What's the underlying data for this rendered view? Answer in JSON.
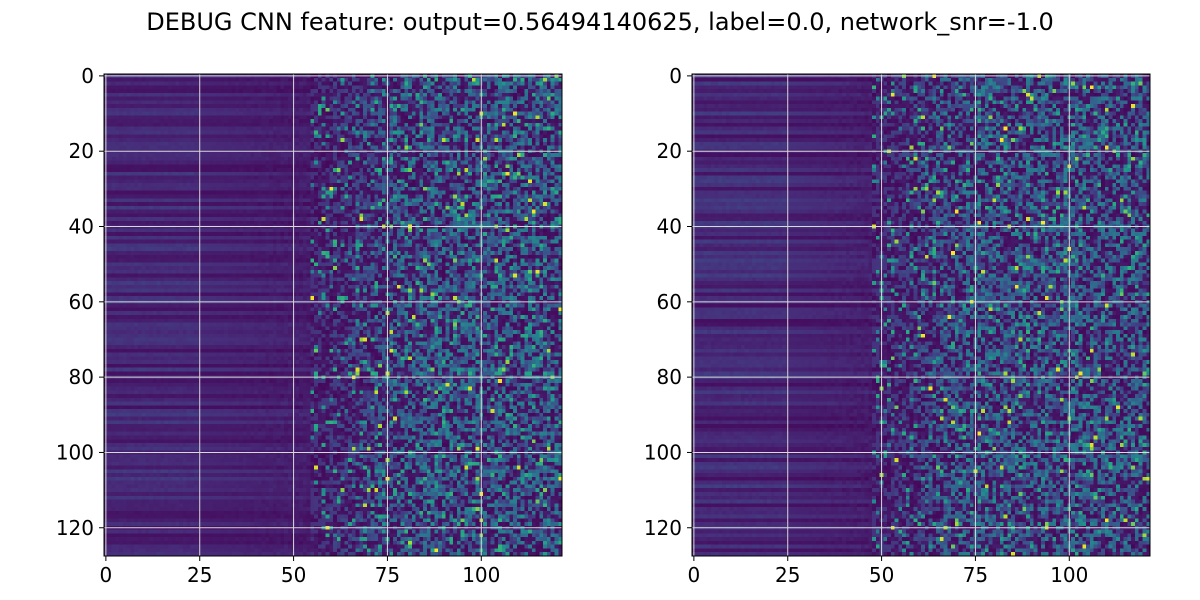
{
  "title": "DEBUG CNN feature: output=0.56494140625, label=0.0, network_snr=-1.0",
  "chart_data": [
    {
      "type": "heatmap",
      "name": "left-heatmap",
      "colormap": "viridis",
      "rows": 128,
      "cols": 122,
      "xlim": [
        -0.5,
        121.5
      ],
      "ylim": [
        127.5,
        -0.5
      ],
      "xticks": [
        0,
        25,
        50,
        75,
        100
      ],
      "yticks": [
        0,
        20,
        40,
        60,
        80,
        100,
        120
      ],
      "grid": true,
      "noise_onset_col": 55,
      "seed": 17
    },
    {
      "type": "heatmap",
      "name": "right-heatmap",
      "colormap": "viridis",
      "rows": 128,
      "cols": 122,
      "xlim": [
        -0.5,
        121.5
      ],
      "ylim": [
        127.5,
        -0.5
      ],
      "xticks": [
        0,
        25,
        50,
        75,
        100
      ],
      "yticks": [
        0,
        20,
        40,
        60,
        80,
        100,
        120
      ],
      "grid": true,
      "noise_onset_col": 48,
      "seed": 91
    }
  ],
  "colors": {
    "grid": "#d9d9d9",
    "axis": "#000000"
  }
}
